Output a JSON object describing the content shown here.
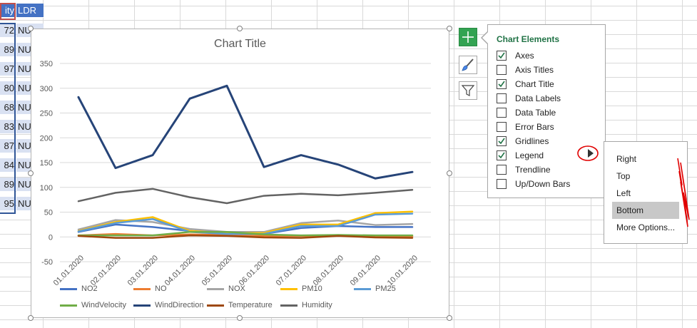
{
  "sheet": {
    "headers": {
      "col_a": "ity",
      "col_b": "LDR"
    },
    "rows": [
      {
        "a": "72",
        "b": "NU"
      },
      {
        "a": "89",
        "b": "NU"
      },
      {
        "a": "97",
        "b": "NU"
      },
      {
        "a": "80",
        "b": "NU"
      },
      {
        "a": "68",
        "b": "NU"
      },
      {
        "a": "83",
        "b": "NU"
      },
      {
        "a": "87",
        "b": "NU"
      },
      {
        "a": "84",
        "b": "NU"
      },
      {
        "a": "89",
        "b": "NU"
      },
      {
        "a": "95",
        "b": "NU"
      }
    ]
  },
  "chart_data": {
    "type": "line",
    "title": "Chart Title",
    "categories": [
      "01.01.2020",
      "02.01.2020",
      "03.01.2020",
      "04.01.2020",
      "05.01.2020",
      "06.01.2020",
      "07.01.2020",
      "08.01.2020",
      "09.01.2020",
      "10.01.2020"
    ],
    "ylim": [
      -50,
      350
    ],
    "yticks": [
      -50,
      0,
      50,
      100,
      150,
      200,
      250,
      300,
      350
    ],
    "grid": true,
    "legend_position": "bottom",
    "series": [
      {
        "name": "NO2",
        "color": "#4472c4",
        "values": [
          10,
          25,
          20,
          12,
          8,
          6,
          18,
          22,
          20,
          20
        ]
      },
      {
        "name": "NO",
        "color": "#ed7d31",
        "values": [
          3,
          6,
          3,
          5,
          4,
          2,
          2,
          3,
          1,
          1
        ]
      },
      {
        "name": "NOX",
        "color": "#a5a5a5",
        "values": [
          15,
          34,
          30,
          16,
          10,
          10,
          28,
          33,
          24,
          26
        ]
      },
      {
        "name": "PM10",
        "color": "#ffc000",
        "values": [
          12,
          30,
          40,
          12,
          8,
          8,
          25,
          25,
          48,
          51
        ]
      },
      {
        "name": "PM25",
        "color": "#5b9bd5",
        "values": [
          11,
          28,
          36,
          10,
          6,
          6,
          22,
          22,
          45,
          47
        ]
      },
      {
        "name": "WindVelocity",
        "color": "#70ad47",
        "values": [
          3,
          3,
          3,
          10,
          10,
          5,
          3,
          4,
          3,
          3
        ]
      },
      {
        "name": "WindDirection",
        "color": "#264478",
        "values": [
          282,
          139,
          165,
          279,
          305,
          141,
          165,
          146,
          118,
          131
        ]
      },
      {
        "name": "Temperature",
        "color": "#9e480e",
        "values": [
          2,
          -2,
          -2,
          3,
          2,
          -1,
          -2,
          2,
          -1,
          -2
        ]
      },
      {
        "name": "Humidity",
        "color": "#636363",
        "values": [
          72,
          89,
          97,
          80,
          68,
          83,
          87,
          84,
          89,
          95
        ]
      }
    ]
  },
  "chart_elements": {
    "title": "Chart Elements",
    "options": [
      {
        "label": "Axes",
        "checked": true
      },
      {
        "label": "Axis Titles",
        "checked": false
      },
      {
        "label": "Chart Title",
        "checked": true
      },
      {
        "label": "Data Labels",
        "checked": false
      },
      {
        "label": "Data Table",
        "checked": false
      },
      {
        "label": "Error Bars",
        "checked": false
      },
      {
        "label": "Gridlines",
        "checked": true
      },
      {
        "label": "Legend",
        "checked": true
      },
      {
        "label": "Trendline",
        "checked": false
      },
      {
        "label": "Up/Down Bars",
        "checked": false
      }
    ]
  },
  "legend_submenu": {
    "items": [
      "Right",
      "Top",
      "Left",
      "Bottom",
      "More Options..."
    ],
    "highlighted": "Bottom"
  },
  "side_buttons": {
    "elements_icon": "plus-icon",
    "styles_icon": "brush-icon",
    "filter_icon": "funnel-icon"
  }
}
